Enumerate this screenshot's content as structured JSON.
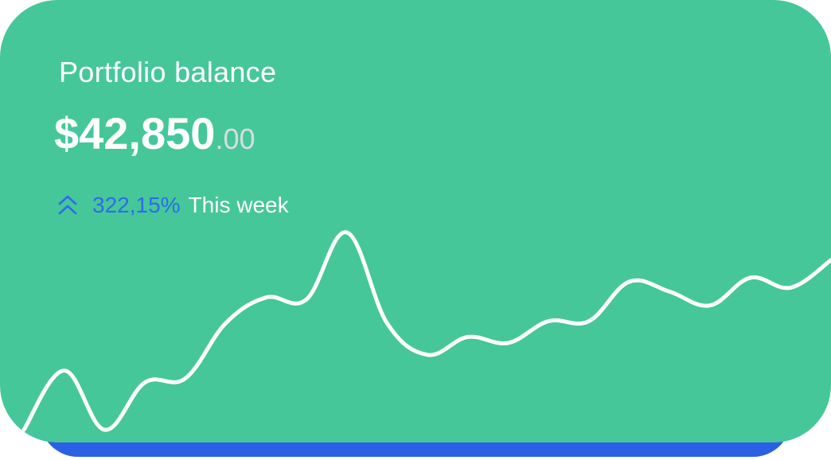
{
  "card": {
    "title": "Portfolio balance",
    "balance_main": "$42,850",
    "balance_cents": ".00",
    "change_percent": "322,15%",
    "change_period": "This week",
    "trend_icon": "double-chevron-up-icon"
  },
  "colors": {
    "card_background": "#45c79a",
    "card_shadow": "#2b5fe6",
    "title_text": "#ffffff",
    "cents_text": "#d7dde0",
    "positive_change": "#2f6bea",
    "sparkline": "#ffffff"
  },
  "chart_data": {
    "type": "line",
    "title": "",
    "xlabel": "",
    "ylabel": "",
    "grid": false,
    "legend": "none",
    "ylim": [
      0,
      100
    ],
    "series": [
      {
        "values": [
          0,
          30,
          0,
          24,
          26,
          54,
          67,
          66,
          100,
          54,
          38,
          47,
          44,
          55,
          55,
          75,
          70,
          63,
          77,
          72,
          86
        ]
      }
    ]
  }
}
